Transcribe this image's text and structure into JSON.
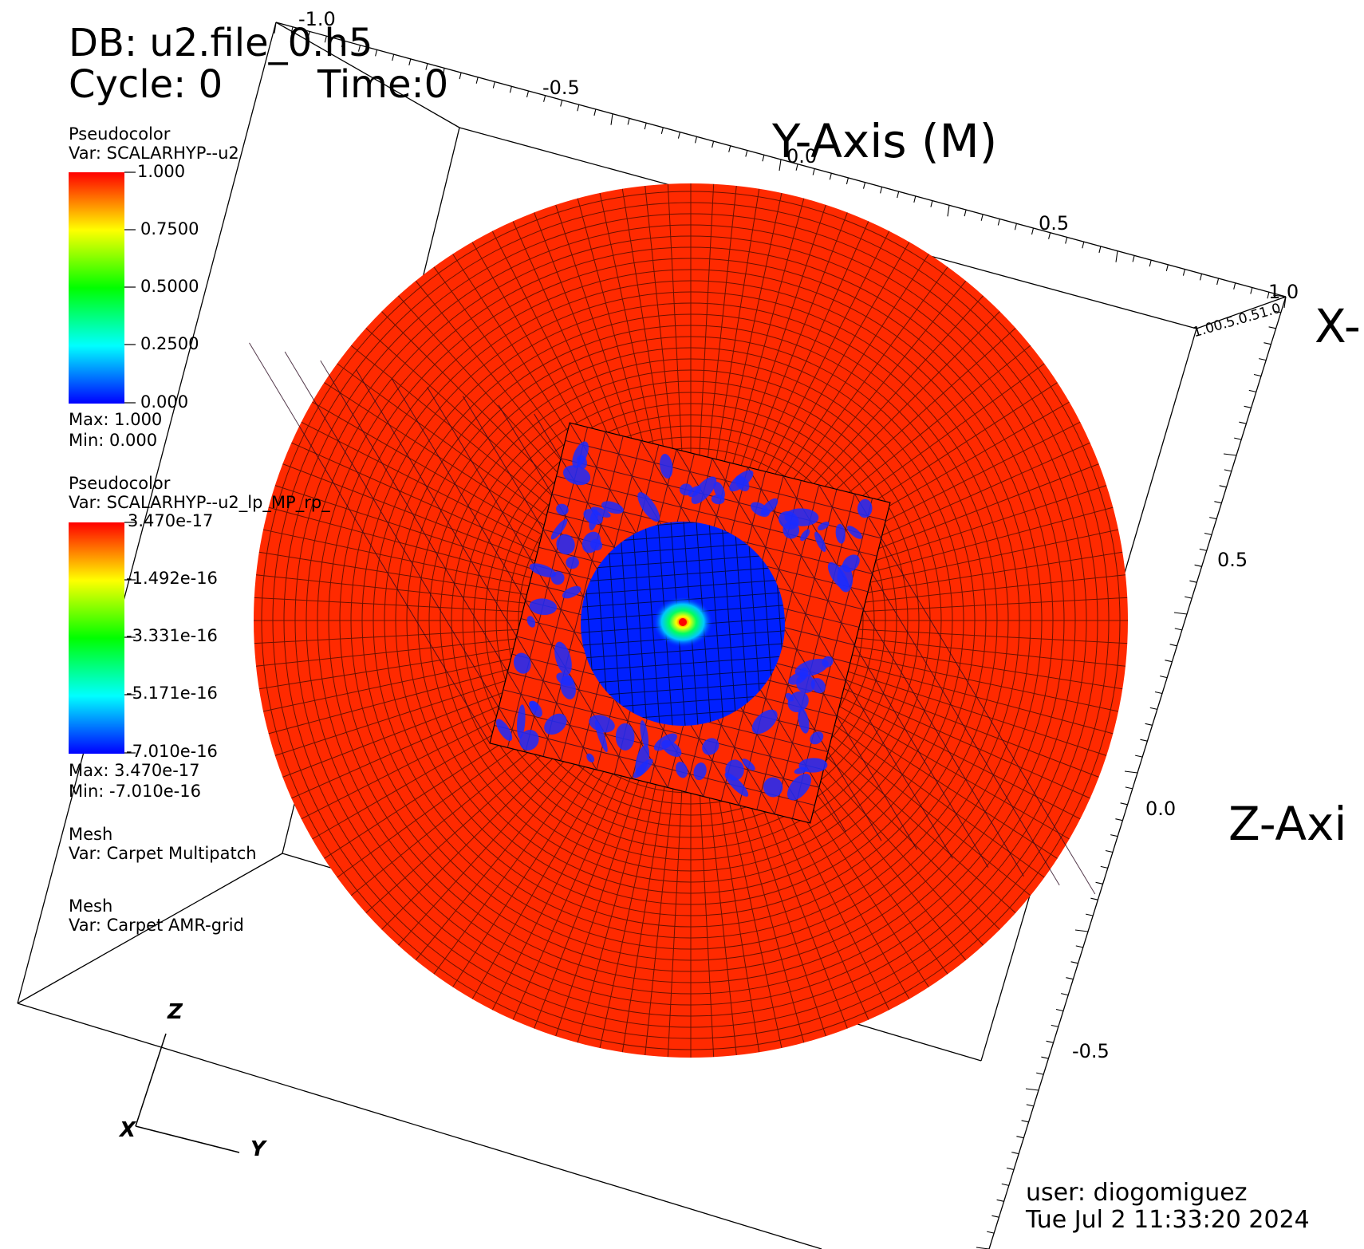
{
  "header": {
    "db_label": "DB: u2.file_0.h5",
    "cycle_label": "Cycle: 0",
    "time_label": "Time:0"
  },
  "legends": [
    {
      "plot": "Pseudocolor",
      "var": "Var: SCALARHYP--u2",
      "ticks": [
        "1.000",
        "0.7500",
        "0.5000",
        "0.2500",
        "0.000"
      ],
      "max": "Max:  1.000",
      "min": "Min:  0.000"
    },
    {
      "plot": "Pseudocolor",
      "var": "Var: SCALARHYP--u2_lp_MP_rp_",
      "ticks": [
        "3.470e-17",
        "-1.492e-16",
        "-3.331e-16",
        "-5.171e-16",
        "-7.010e-16"
      ],
      "max": "Max:  3.470e-17",
      "min": "Min: -7.010e-16"
    },
    {
      "plot": "Mesh",
      "var": "Var: Carpet Multipatch"
    },
    {
      "plot": "Mesh",
      "var": "Var: Carpet AMR-grid"
    }
  ],
  "axes": {
    "y_title": "Y-Axis (M)",
    "x_title": "X-",
    "z_title": "Z-Axi",
    "y_ticks": [
      "-1.0",
      "-0.5",
      "0.0",
      "0.5",
      "1.0"
    ],
    "z_ticks": [
      "0.5",
      "0.0",
      "-0.5"
    ],
    "x_corner_ticks": "1.00.5.0.51.0"
  },
  "triad": {
    "x": "X",
    "y": "Y",
    "z": "Z"
  },
  "footer": {
    "user": "user: diogomiguez",
    "timestamp": "Tue Jul  2 11:33:20 2024"
  },
  "colors": {
    "outer_patch": "#ff2a00",
    "inner_sphere": "#0020ff",
    "background": "#ffffff"
  }
}
